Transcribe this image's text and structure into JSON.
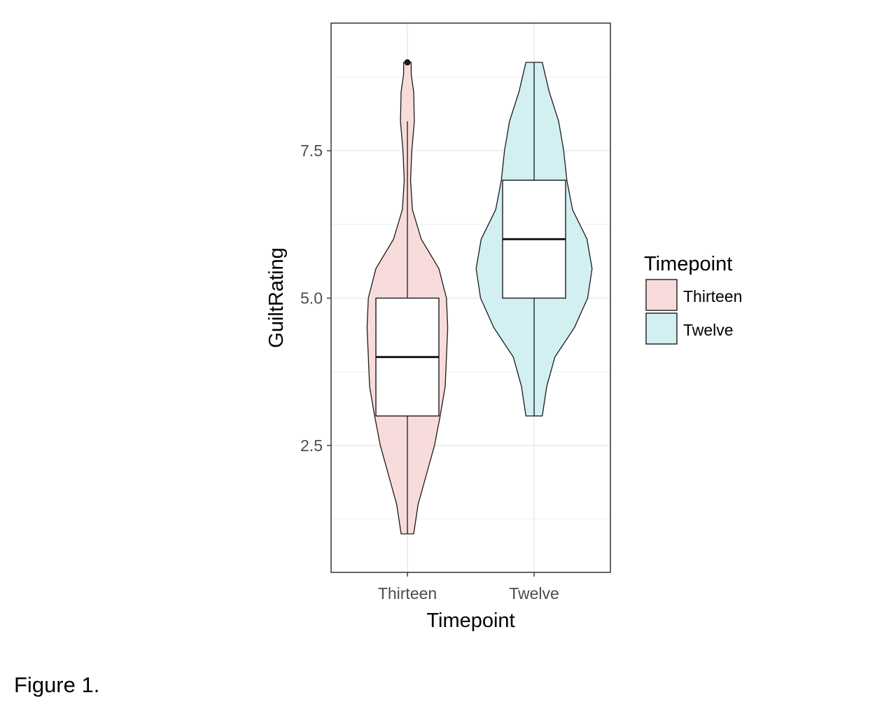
{
  "figure_caption": "Figure 1.",
  "chart_data": {
    "type": "violin",
    "overlay": "boxplot",
    "xlabel": "Timepoint",
    "ylabel": "GuiltRating",
    "categories": [
      "Thirteen",
      "Twelve"
    ],
    "y_range": [
      0.6,
      9.3
    ],
    "y_ticks": [
      2.5,
      5.0,
      7.5
    ],
    "y_tick_labels": [
      "2.5",
      "5.0",
      "7.5"
    ],
    "grid": true,
    "legend": {
      "title": "Timepoint",
      "placement": "right",
      "entries": [
        "Thirteen",
        "Twelve"
      ]
    },
    "colors": {
      "Thirteen": "#f8dcdb",
      "Twelve": "#d2eff1"
    },
    "groups": [
      {
        "name": "Thirteen",
        "min": 1,
        "q1": 3,
        "median": 4,
        "q3": 5,
        "max": 9,
        "whisker_low": 1,
        "whisker_high": 8,
        "outliers": [
          9
        ],
        "density": [
          [
            1.0,
            0.1
          ],
          [
            1.5,
            0.17
          ],
          [
            2.0,
            0.3
          ],
          [
            2.5,
            0.43
          ],
          [
            3.0,
            0.52
          ],
          [
            3.5,
            0.6
          ],
          [
            4.0,
            0.62
          ],
          [
            4.5,
            0.64
          ],
          [
            5.0,
            0.62
          ],
          [
            5.5,
            0.5
          ],
          [
            6.0,
            0.22
          ],
          [
            6.5,
            0.08
          ],
          [
            7.0,
            0.05
          ],
          [
            7.5,
            0.07
          ],
          [
            8.0,
            0.11
          ],
          [
            8.5,
            0.1
          ],
          [
            8.8,
            0.06
          ],
          [
            9.0,
            0.06
          ]
        ]
      },
      {
        "name": "Twelve",
        "min": 3,
        "q1": 5,
        "median": 6,
        "q3": 7,
        "max": 9,
        "whisker_low": 3,
        "whisker_high": 9,
        "outliers": [],
        "density": [
          [
            3.0,
            0.13
          ],
          [
            3.5,
            0.2
          ],
          [
            4.0,
            0.33
          ],
          [
            4.5,
            0.64
          ],
          [
            5.0,
            0.85
          ],
          [
            5.5,
            0.92
          ],
          [
            6.0,
            0.84
          ],
          [
            6.5,
            0.61
          ],
          [
            7.0,
            0.52
          ],
          [
            7.5,
            0.47
          ],
          [
            8.0,
            0.39
          ],
          [
            8.5,
            0.24
          ],
          [
            9.0,
            0.13
          ]
        ]
      }
    ]
  }
}
